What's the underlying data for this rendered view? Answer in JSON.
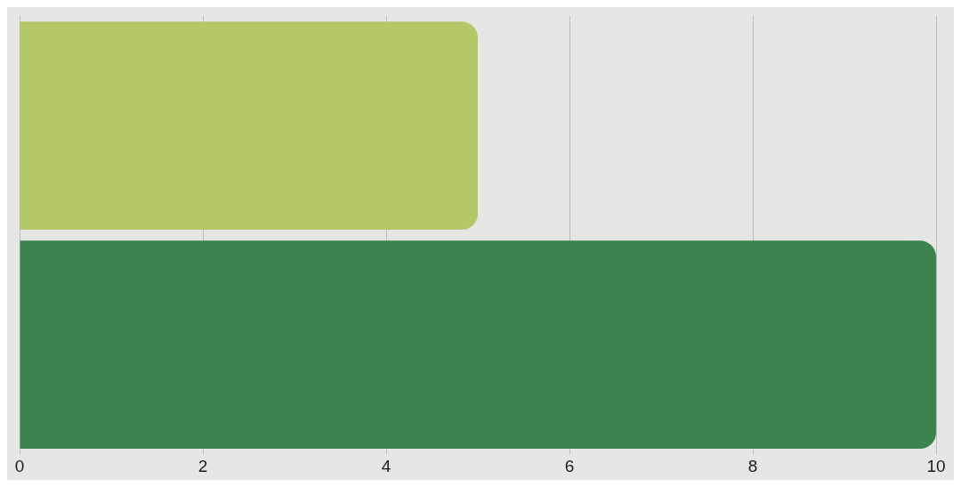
{
  "chart_data": {
    "type": "bar",
    "orientation": "horizontal",
    "categories": [
      null,
      null
    ],
    "values": [
      5,
      10
    ],
    "colors": [
      "#b2c869",
      "#3c8350"
    ],
    "xlim": [
      0,
      10
    ],
    "xticks": [
      0,
      2,
      4,
      6,
      8,
      10
    ],
    "grid": "x",
    "legend": false
  }
}
